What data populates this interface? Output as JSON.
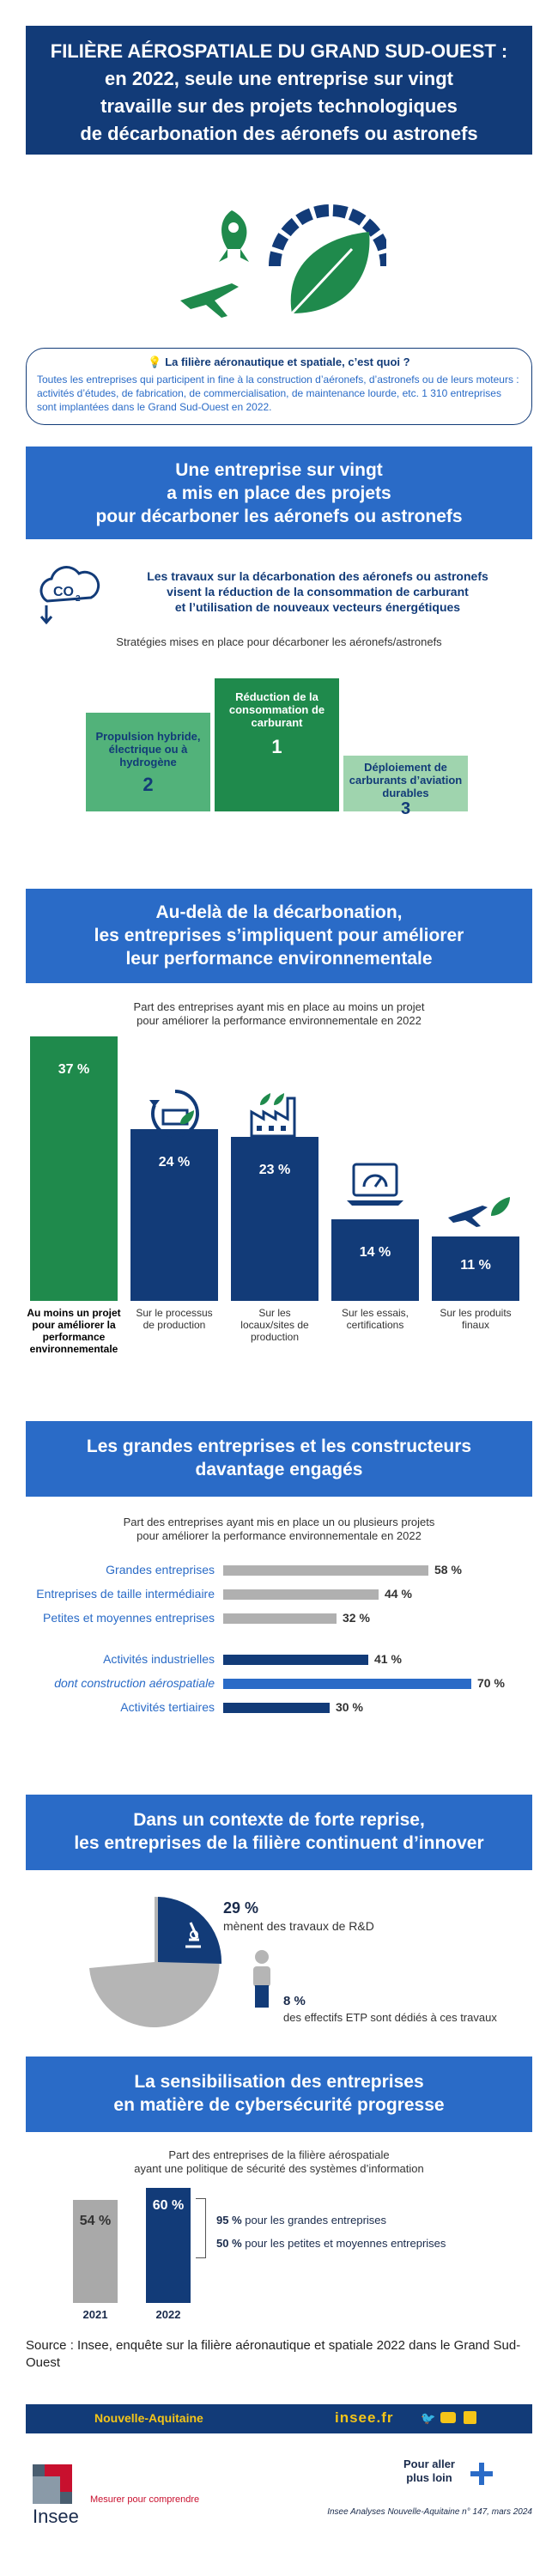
{
  "title": {
    "line1": "FILIÈRE AÉROSPATIALE DU GRAND SUD-OUEST :",
    "line2": "en 2022, seule une entreprise sur vingt",
    "line3": "travaille sur des projets technologiques",
    "line4": "de décarbonation des aéronefs ou astronefs"
  },
  "intro": {
    "heading": "La filière aéronautique et spatiale, c’est quoi ?",
    "text": "Toutes les entreprises qui participent in fine à la construction d’aéronefs, d’astronefs ou de leurs moteurs : activités d’études, de fabrication, de commercialisation, de maintenance lourde, etc. 1 310 entreprises sont implantées dans le Grand Sud-Ouest en 2022."
  },
  "section1": {
    "banner1": "Une entreprise sur vingt",
    "banner2": "a mis en place des projets",
    "banner3": "pour décarboner les aéronefs ou astronefs",
    "co2": "CO",
    "co2_sub": "2",
    "note1": "Les travaux sur la décarbonation des aéronefs  ou astronefs",
    "note2": "visent la réduction  de la consommation de carburant",
    "note3": "et  l’utilisation de nouveaux vecteurs énergétiques",
    "subtitle": "Stratégies mises en place pour décarboner les aéronefs/astronefs",
    "podium": [
      {
        "label": "Propulsion hybride, électrique ou à hydrogène",
        "rank": "2",
        "color": "#52b27a"
      },
      {
        "label": "Réduction de la consommation de carburant",
        "rank": "1",
        "color": "#1f8a4c"
      },
      {
        "label": "Déploiement de carburants d’aviation durables",
        "rank": "3",
        "color": "#9fd4ae"
      }
    ]
  },
  "section2": {
    "banner1": "Au-delà de la décarbonation,",
    "banner2": "les entreprises s’impliquent pour améliorer",
    "banner3": "leur performance environnementale",
    "subtitle1": "Part des entreprises ayant mis en place au moins un projet",
    "subtitle2": "pour améliorer la performance environnementale en 2022",
    "bars": [
      {
        "value": "37 %",
        "pct": 37,
        "label": "Au moins un projet pour améliorer la performance environnementale",
        "color": "#1f8a4c"
      },
      {
        "value": "24 %",
        "pct": 24,
        "label": "Sur le processus de production",
        "color": "#123b78"
      },
      {
        "value": "23 %",
        "pct": 23,
        "label": "Sur les locaux/sites de production",
        "color": "#123b78"
      },
      {
        "value": "14 %",
        "pct": 14,
        "label": "Sur les essais, certifications",
        "color": "#123b78"
      },
      {
        "value": "11 %",
        "pct": 11,
        "label": "Sur les produits finaux",
        "color": "#123b78"
      }
    ]
  },
  "section3": {
    "banner1": "Les grandes entreprises et les constructeurs",
    "banner2": "davantage engagés",
    "subtitle1": "Part des entreprises ayant mis en place un ou plusieurs projets",
    "subtitle2": "pour améliorer la performance environnementale en 2022",
    "rows": [
      {
        "label": "Grandes entreprises",
        "value": "58 %",
        "pct": 58,
        "color": "#b0b0b0",
        "italic": false
      },
      {
        "label": "Entreprises de taille intermédiaire",
        "value": "44 %",
        "pct": 44,
        "color": "#b0b0b0",
        "italic": false
      },
      {
        "label": "Petites et moyennes entreprises",
        "value": "32 %",
        "pct": 32,
        "color": "#b0b0b0",
        "italic": false
      },
      {
        "label": "Activités industrielles",
        "value": "41 %",
        "pct": 41,
        "color": "#123b78",
        "italic": false
      },
      {
        "label": "dont construction aérospatiale",
        "value": "70 %",
        "pct": 70,
        "color": "#2a6bc7",
        "italic": true
      },
      {
        "label": "Activités tertiaires",
        "value": "30 %",
        "pct": 30,
        "color": "#123b78",
        "italic": false
      }
    ]
  },
  "section4": {
    "banner1": "Dans un contexte de forte reprise,",
    "banner2": "les entreprises de la filière continuent d’innover",
    "pct1": "29 %",
    "text1": "mènent des travaux de R&D",
    "pct2": "8 %",
    "text2": "des effectifs ETP sont dédiés à ces travaux",
    "rd_share": 29
  },
  "section5": {
    "banner1": "La sensibilisation des entreprises",
    "banner2": "en matière de cybersécurité progresse",
    "subtitle1": "Part des entreprises de la filière aérospatiale",
    "subtitle2": "ayant une politique de sécurité des systèmes d’information",
    "bars": [
      {
        "year": "2021",
        "value": "54 %",
        "pct": 54,
        "color": "#a9a9a9"
      },
      {
        "year": "2022",
        "value": "60 %",
        "pct": 60,
        "color": "#123b78"
      }
    ],
    "detail1_val": "95 %",
    "detail1_text": "pour les grandes entreprises",
    "detail2_val": "50 %",
    "detail2_text": "pour les petites et moyennes entreprises"
  },
  "source": "Source : Insee, enquête sur la filière aéronautique et spatiale 2022 dans le Grand Sud-Ouest",
  "footer": {
    "region": "Nouvelle-Aquitaine",
    "site": "insee.fr",
    "logo": "Insee",
    "tagline": "Mesurer pour comprendre",
    "more1": "Pour aller",
    "more2": "plus loin",
    "ref": "Insee Analyses Nouvelle-Aquitaine n° 147, mars 2024"
  },
  "colors": {
    "dark": "#123b78",
    "blue": "#2a6bc7",
    "green": "#1f8a4c",
    "gold": "#f5c518"
  }
}
